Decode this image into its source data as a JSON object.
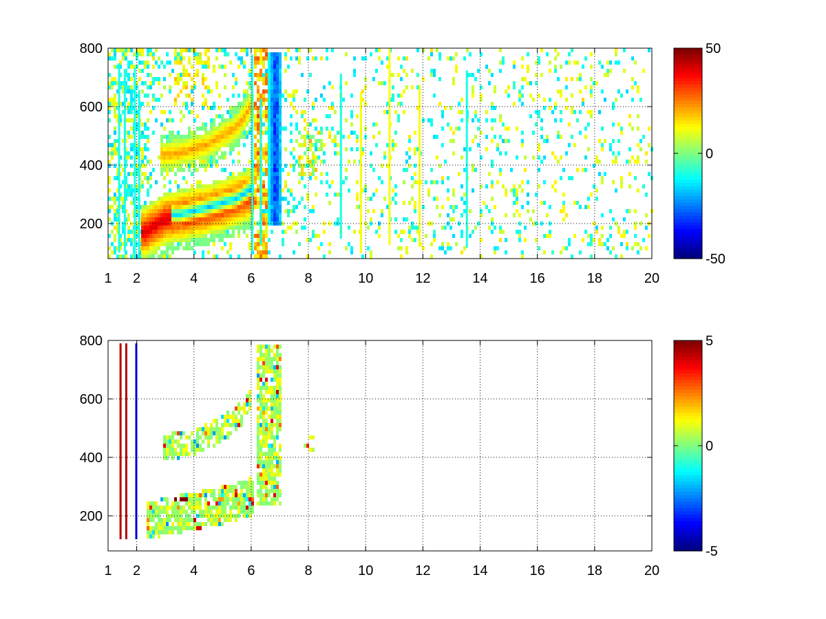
{
  "chart_data": [
    {
      "type": "heatmap",
      "title": "",
      "xlabel": "",
      "ylabel": "",
      "xlim": [
        1,
        20
      ],
      "ylim": [
        80,
        800
      ],
      "grid": true,
      "x_ticks": [
        1,
        2,
        4,
        6,
        8,
        10,
        12,
        14,
        16,
        18,
        20
      ],
      "y_ticks": [
        200,
        400,
        600,
        800
      ],
      "colorbar": {
        "min": -50,
        "max": 50,
        "ticks": [
          50,
          0,
          -50
        ],
        "colormap": "jet"
      },
      "features": [
        {
          "desc": "lower band",
          "x": [
            2.3,
            3,
            4,
            5,
            6
          ],
          "y": [
            170,
            215,
            235,
            260,
            300
          ],
          "width": 90,
          "value": 38
        },
        {
          "desc": "upper band",
          "x": [
            2.9,
            3.5,
            4.5,
            5.5,
            6.0
          ],
          "y": [
            435,
            440,
            470,
            530,
            600
          ],
          "width": 45,
          "value": 18
        },
        {
          "desc": "negative band",
          "x": [
            3.5,
            4.5,
            5.5,
            6.2,
            6.9
          ],
          "y": [
            230,
            255,
            285,
            330,
            420
          ],
          "width": 35,
          "value": -45
        },
        {
          "desc": "vertical negative region",
          "x": [
            6.6,
            7.1
          ],
          "y": [
            200,
            780
          ],
          "value": -35
        }
      ]
    },
    {
      "type": "heatmap",
      "title": "",
      "xlabel": "",
      "ylabel": "",
      "xlim": [
        1,
        20
      ],
      "ylim": [
        80,
        800
      ],
      "grid": true,
      "x_ticks": [
        1,
        2,
        4,
        6,
        8,
        10,
        12,
        14,
        16,
        18,
        20
      ],
      "y_ticks": [
        200,
        400,
        600,
        800
      ],
      "colorbar": {
        "min": -5,
        "max": 5,
        "ticks": [
          5,
          0,
          -5
        ],
        "colormap": "jet"
      },
      "features": [
        {
          "desc": "lower band",
          "x": [
            2.5,
            3,
            4,
            5,
            6
          ],
          "y": [
            200,
            215,
            230,
            250,
            280
          ],
          "width": 70,
          "value": 0
        },
        {
          "desc": "upper band",
          "x": [
            2.9,
            3.5,
            4.5,
            5.5,
            6.0
          ],
          "y": [
            435,
            440,
            470,
            530,
            590
          ],
          "width": 45,
          "value": 0
        },
        {
          "desc": "hot streak",
          "x": [
            3.1,
            3.8
          ],
          "y": [
            255,
            260
          ],
          "value": 5
        }
      ]
    }
  ]
}
